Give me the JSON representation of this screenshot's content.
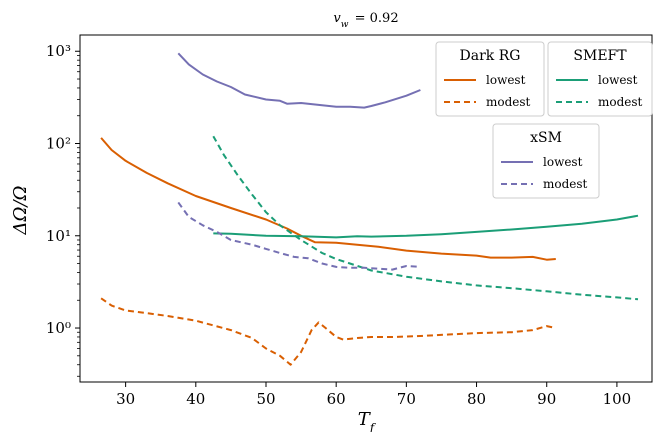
{
  "chart_data": {
    "type": "line",
    "title": "v_w = 0.92",
    "xlabel": "T_f",
    "ylabel": "ΔΩ/Ω",
    "xlim": [
      23.5,
      105
    ],
    "ylim": [
      0.26,
      1500
    ],
    "yscale": "log",
    "xticks": [
      30,
      40,
      50,
      60,
      70,
      80,
      90,
      100
    ],
    "xtick_labels": [
      "30",
      "40",
      "50",
      "60",
      "70",
      "80",
      "90",
      "100"
    ],
    "yticks": [
      1,
      10,
      100,
      1000
    ],
    "ytick_labels": [
      "10⁰",
      "10¹",
      "10²",
      "10³"
    ],
    "grid": false,
    "colors": {
      "dark_rg": "#d95f02",
      "smeft": "#1b9e77",
      "xsm": "#7570b3"
    },
    "legends": [
      {
        "title": "Dark RG",
        "entries": [
          {
            "label": "lowest",
            "series": "Dark RG lowest"
          },
          {
            "label": "modest",
            "series": "Dark RG modest"
          }
        ],
        "placement": "top-right"
      },
      {
        "title": "SMEFT",
        "entries": [
          {
            "label": "lowest",
            "series": "SMEFT lowest"
          },
          {
            "label": "modest",
            "series": "SMEFT modest"
          }
        ],
        "placement": "top-right"
      },
      {
        "title": "xSM",
        "entries": [
          {
            "label": "lowest",
            "series": "xSM lowest"
          },
          {
            "label": "modest",
            "series": "xSM modest"
          }
        ],
        "placement": "upper-right"
      }
    ],
    "series": [
      {
        "name": "Dark RG lowest",
        "color": "#d95f02",
        "dash": "solid",
        "x": [
          26.5,
          28,
          30,
          33,
          36,
          40,
          45,
          50,
          53,
          55,
          57,
          60,
          63,
          66,
          70,
          75,
          80,
          82,
          85,
          88,
          90,
          91.3
        ],
        "y": [
          115,
          85,
          65,
          48,
          37,
          27,
          20,
          15,
          12,
          10,
          8.5,
          8.4,
          8.0,
          7.6,
          6.9,
          6.4,
          6.1,
          5.8,
          5.8,
          5.9,
          5.5,
          5.6
        ]
      },
      {
        "name": "Dark RG modest",
        "color": "#d95f02",
        "dash": "dashed",
        "x": [
          26.5,
          28,
          30,
          33,
          36,
          40,
          45,
          48,
          50,
          52,
          53.5,
          55,
          56.5,
          57.5,
          58.5,
          60,
          61,
          63,
          65,
          68,
          72,
          76,
          80,
          85,
          88,
          90,
          91.3
        ],
        "y": [
          2.1,
          1.75,
          1.55,
          1.45,
          1.35,
          1.2,
          0.95,
          0.78,
          0.6,
          0.5,
          0.4,
          0.55,
          0.95,
          1.15,
          1.0,
          0.8,
          0.75,
          0.78,
          0.8,
          0.8,
          0.82,
          0.85,
          0.88,
          0.9,
          0.95,
          1.05,
          1.0
        ]
      },
      {
        "name": "SMEFT lowest",
        "color": "#1b9e77",
        "dash": "solid",
        "x": [
          42.5,
          45,
          50,
          55,
          60,
          63,
          65,
          70,
          75,
          80,
          85,
          90,
          95,
          100,
          103
        ],
        "y": [
          10.6,
          10.5,
          10.0,
          9.9,
          9.6,
          9.9,
          9.8,
          10.0,
          10.4,
          11.0,
          11.7,
          12.5,
          13.5,
          15.0,
          16.5
        ]
      },
      {
        "name": "SMEFT modest",
        "color": "#1b9e77",
        "dash": "dashed",
        "x": [
          42.5,
          44,
          46,
          48,
          50,
          52,
          55,
          58,
          60,
          65,
          70,
          75,
          80,
          85,
          90,
          95,
          100,
          103
        ],
        "y": [
          120,
          75,
          45,
          28,
          18,
          13,
          9.0,
          6.5,
          5.6,
          4.2,
          3.6,
          3.2,
          2.9,
          2.7,
          2.5,
          2.3,
          2.15,
          2.05
        ]
      },
      {
        "name": "xSM lowest",
        "color": "#7570b3",
        "dash": "solid",
        "x": [
          37.5,
          39,
          41,
          43,
          45,
          47,
          50,
          52,
          53,
          55,
          57,
          60,
          62,
          64,
          65,
          67,
          70,
          72
        ],
        "y": [
          950,
          720,
          560,
          470,
          410,
          340,
          300,
          290,
          270,
          275,
          265,
          250,
          250,
          245,
          255,
          280,
          330,
          380
        ]
      },
      {
        "name": "xSM modest",
        "color": "#7570b3",
        "dash": "dashed",
        "x": [
          37.5,
          39,
          41,
          43,
          45,
          48,
          50,
          52,
          54,
          56,
          58,
          60,
          62,
          64,
          66,
          68,
          70,
          72
        ],
        "y": [
          23,
          16,
          13,
          11,
          9.0,
          8.0,
          7.2,
          6.5,
          5.9,
          5.7,
          5.0,
          4.6,
          4.5,
          4.5,
          4.4,
          4.3,
          4.7,
          4.6
        ]
      }
    ]
  }
}
